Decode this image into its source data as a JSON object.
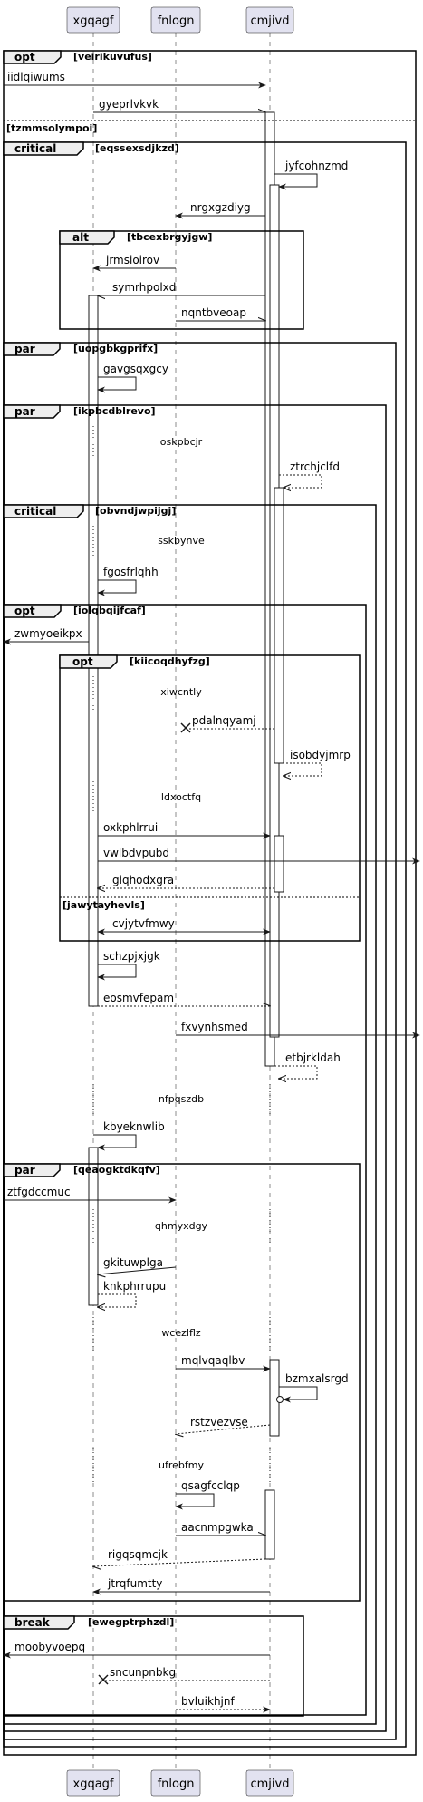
{
  "participants": [
    "xgqagf",
    "fnlogn",
    "cmjivd"
  ],
  "fragments": {
    "opt_veirik": {
      "op": "opt",
      "guard": "[veirikuvufus]"
    },
    "alt_tzmms": {
      "guard": "[tzmmsolympoi]"
    },
    "crit_eqsse": {
      "op": "critical",
      "guard": "[eqssexsdjkzd]"
    },
    "alt_tbcex": {
      "op": "alt",
      "guard": "[tbcexbrgyjgw]"
    },
    "par_uopgb": {
      "op": "par",
      "guard": "[uopgbkgprifx]"
    },
    "par_ikpbc": {
      "op": "par",
      "guard": "[ikpbcdblrevo]"
    },
    "crit_obvnd": {
      "op": "critical",
      "guard": "[obvndjwpijgj]"
    },
    "opt_iolqb": {
      "op": "opt",
      "guard": "[iolqbqijfcaf]"
    },
    "opt_kiico": {
      "op": "opt",
      "guard": "[kiicoqdhyfzg]"
    },
    "alt_jawyt": {
      "guard": "[jawytayhevls]"
    },
    "par_qeaog": {
      "op": "par",
      "guard": "[qeaogktdkqfv]"
    },
    "break_ewegp": {
      "op": "break",
      "guard": "[ewegptrphzdl]"
    }
  },
  "messages": {
    "m01": "iidlqiwums",
    "m02": "gyeprlvkvk",
    "m03": "jyfcohnzmd",
    "m04": "nrgxgzdiyg",
    "m05": "jrmsioirov",
    "m06": "symrhpolxd",
    "m07": "nqntbveoap",
    "m08": "gavgsqxgcy",
    "m09": "ztrchjclfd",
    "m10": "fgosfrlqhh",
    "m11": "zwmyoeikpx",
    "m12": "pdalnqyamj",
    "m13": "isobdyjmrp",
    "m14": "oxkphlrrui",
    "m15": "vwlbdvpubd",
    "m16": "giqhodxgra",
    "m17": "cvjytvfmwy",
    "m18": "schzpjxjgk",
    "m19": "eosmvfepam",
    "m20": "fxvynhsmed",
    "m21": "etbjrkldah",
    "m22": "kbyeknwlib",
    "m23": "ztfgdccmuc",
    "m24": "gkituwplga",
    "m25": "knkphrrupu",
    "m26": "mqlvqaqlbv",
    "m27": "bzmxalsrgd",
    "m28": "rstzvezvse",
    "m29": "qsagfcclqp",
    "m30": "aacnmpgwka",
    "m31": "rigqsqmcjk",
    "m32": "jtrqfumtty",
    "m33": "moobyvoepq",
    "m34": "sncunpnbkg",
    "m35": "bvluikhjnf"
  },
  "delays": {
    "d1": "oskpbcjr",
    "d2": "sskbynve",
    "d3": "xiwcntly",
    "d4": "ldxoctfq",
    "d5": "nfpqszdb",
    "d6": "qhmyxdgy",
    "d7": "wcezlflz",
    "d8": "ufrebfmy"
  }
}
